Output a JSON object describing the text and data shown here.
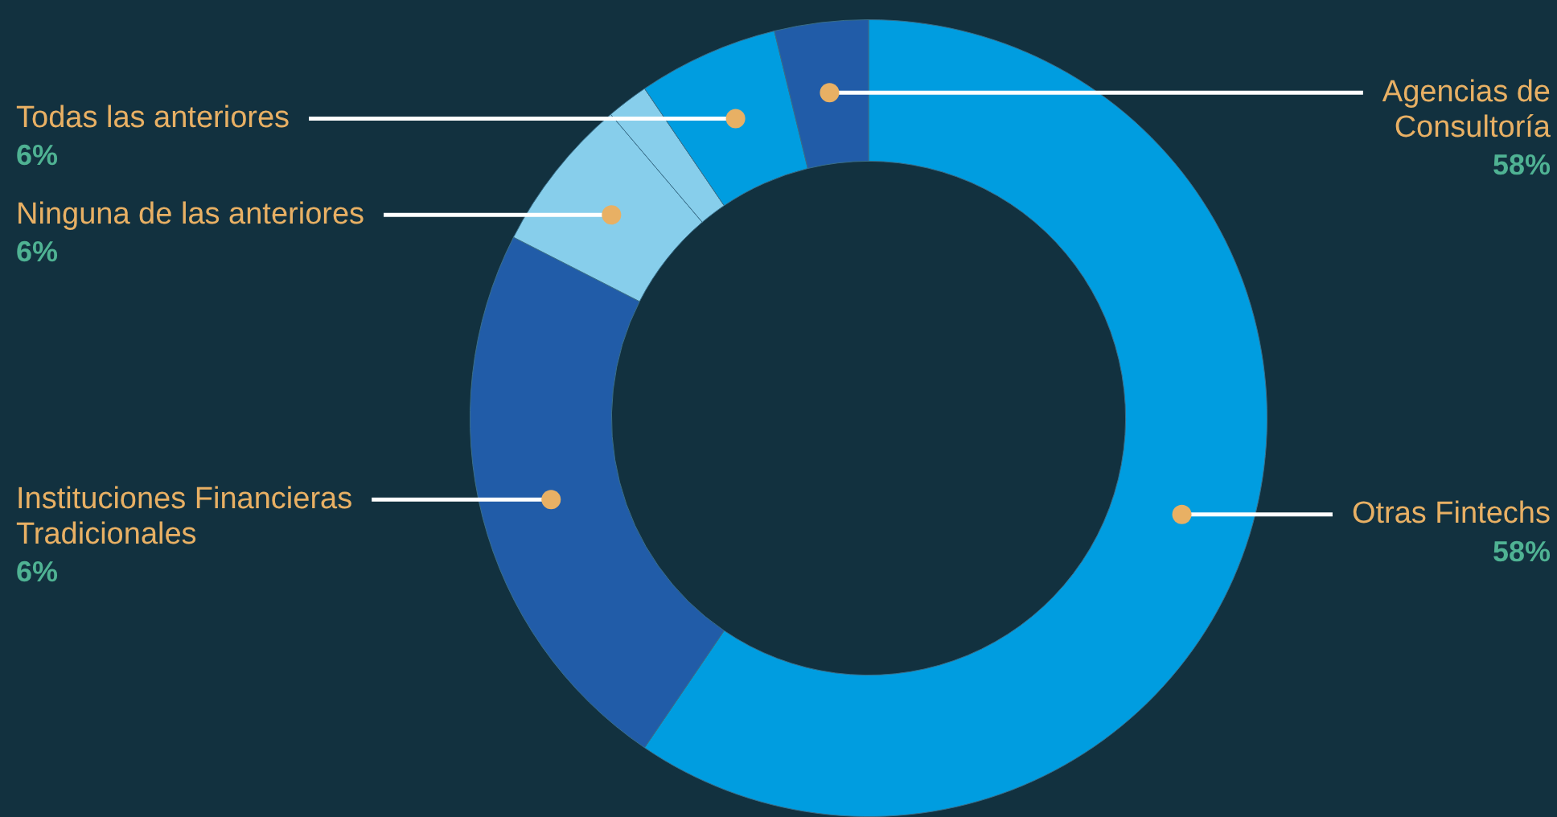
{
  "chart_data": {
    "type": "donut",
    "categories": [
      "Otras Fintechs",
      "Instituciones Financieras\nTradicionales",
      "Ninguna de las anteriores",
      null,
      "Todas las anteriores",
      "Agencias de\nConsultoría"
    ],
    "values": [
      59.5,
      23,
      6.3,
      1.7,
      5.7,
      3.8
    ],
    "colors": [
      "#009de0",
      "#215ca8",
      "#87ceeb",
      "#87ceeb",
      "#009de0",
      "#215ca8"
    ],
    "annotations": [
      "58%",
      "6%",
      "6%",
      "6%",
      "58%"
    ],
    "legend": false
  }
}
